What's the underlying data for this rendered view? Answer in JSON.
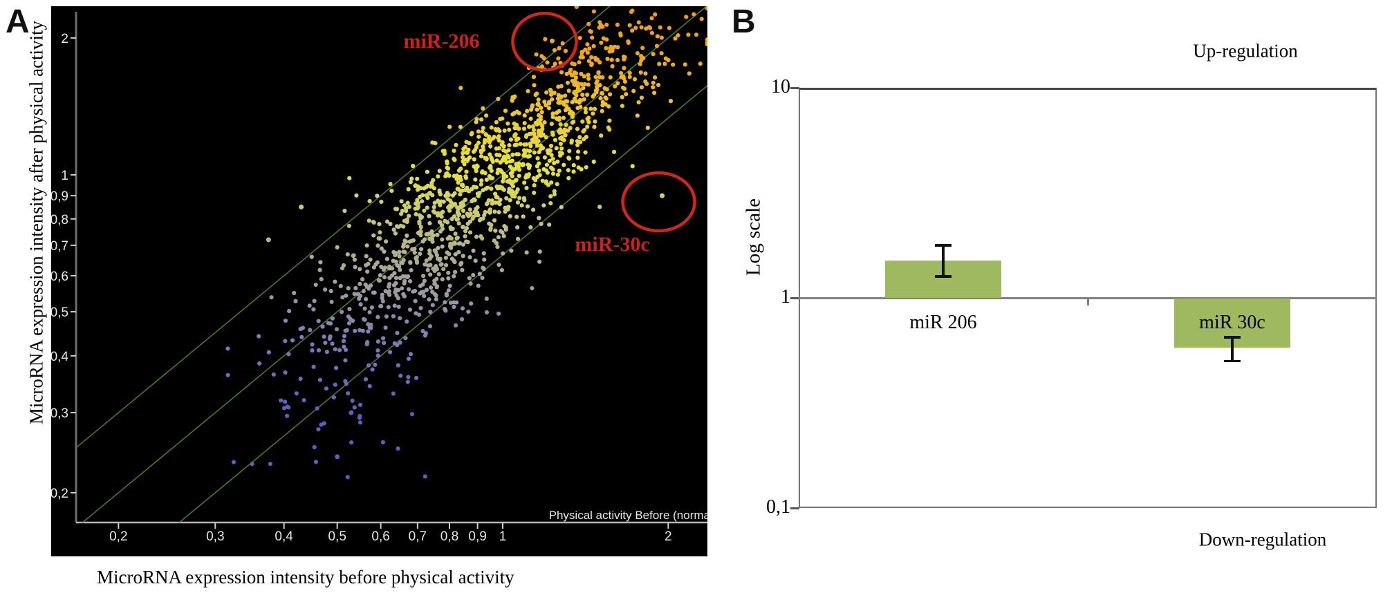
{
  "panel_a": {
    "label": "A",
    "y_caption": "MicroRNA expression intensity after physical activity",
    "x_caption": "MicroRNA expression intensity before physical activity"
  },
  "panel_b": {
    "label": "B"
  },
  "chart_data": [
    {
      "type": "scatter",
      "title": "",
      "xlabel": "MicroRNA expression intensity before physical activity",
      "ylabel": "MicroRNA expression intensity after physical activity",
      "inner_xlabel": "Physical activity Before  (norma",
      "x_scale": "log",
      "y_scale": "log",
      "xlim": [
        0.165,
        2.35
      ],
      "ylim": [
        0.165,
        2.35
      ],
      "x_ticks": {
        "values": [
          0.2,
          0.3,
          0.4,
          0.5,
          0.6,
          0.7,
          0.8,
          0.9,
          1,
          2
        ],
        "labels": [
          "0,2",
          "0,3",
          "0,4",
          "0,5",
          "0,6",
          "0,7",
          "0,8",
          "0,9",
          "1",
          "2"
        ]
      },
      "y_ticks": {
        "values": [
          2,
          1,
          0.9,
          0.8,
          0.7,
          0.6,
          0.5,
          0.4,
          0.3,
          0.2
        ],
        "labels": [
          "2",
          "1",
          "0,9",
          "0,8",
          "0,7",
          "0,6",
          "0,5",
          "0,4",
          "0,3",
          "0,2"
        ]
      },
      "background": "#000000",
      "fold_lines": {
        "fold": 1.5,
        "color": "#4c8030"
      },
      "highlighted_points": [
        {
          "name": "miR-206",
          "before": 1.23,
          "after": 1.97
        },
        {
          "name": "miR-30c",
          "before": 1.95,
          "after": 0.9
        }
      ],
      "annotation_color": "#c8231c",
      "outlier_points": [
        [
          0.53,
          0.3
        ],
        [
          0.5,
          0.24
        ],
        [
          0.375,
          0.72
        ],
        [
          0.43,
          0.85
        ]
      ],
      "cloud": {
        "seed": 20,
        "point_radius": 3.1,
        "t_clip": [
          -0.5,
          0.372
        ],
        "groups": [
          {
            "n": 1250,
            "t_mean": -0.01,
            "t_sd": 0.16,
            "d_mean": 0.015,
            "d_sd": 0.08
          },
          {
            "n": 150,
            "t_mean": -0.16,
            "t_sd": 0.13,
            "d_mean": -0.15,
            "d_sd": 0.08
          },
          {
            "n": 6,
            "t_mean": -0.25,
            "t_sd": 0.09,
            "d_mean": -0.4,
            "d_sd": 0.08
          }
        ]
      },
      "color_stops": [
        [
          -0.52,
          "#5b5fc0"
        ],
        [
          -0.36,
          "#7e7cb8"
        ],
        [
          -0.26,
          "#9e99a4"
        ],
        [
          -0.16,
          "#b5b48a"
        ],
        [
          -0.06,
          "#d3d266"
        ],
        [
          0.02,
          "#e6e23f"
        ],
        [
          0.12,
          "#eacd33"
        ],
        [
          0.24,
          "#f0ab21"
        ],
        [
          0.42,
          "#f39317"
        ]
      ],
      "axis_color": "#6e6e6e",
      "tick_label_color": "#e8e8e8"
    },
    {
      "type": "bar",
      "categories": [
        "miR 206",
        "miR 30c"
      ],
      "values": [
        1.5,
        0.58
      ],
      "error_low": [
        1.26,
        0.5
      ],
      "error_high": [
        1.78,
        0.65
      ],
      "baseline": 1,
      "y_scale": "log",
      "ylim": [
        0.1,
        10
      ],
      "y_ticks": {
        "values": [
          10,
          1,
          0.1
        ],
        "labels": [
          "10",
          "1",
          "0,1"
        ]
      },
      "ylabel": "Log scale",
      "bar_color": "#9fba5e",
      "error_color": "#111111",
      "annotations": {
        "top": "Up-regulation",
        "bottom": "Down-regulation"
      }
    }
  ]
}
